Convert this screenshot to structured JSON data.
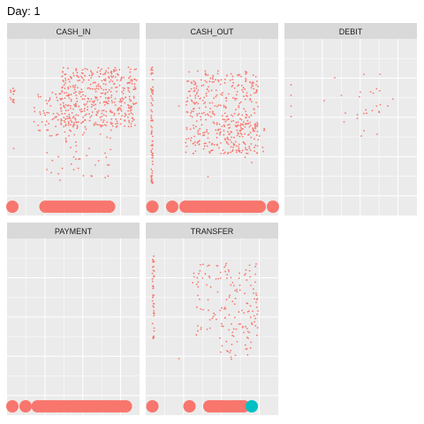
{
  "title": "Day: 1",
  "colors": {
    "panel_bg": "#EBEBEB",
    "strip_bg": "#D9D9D9",
    "grid": "#FFFFFF",
    "not_fraud": "#F8766D",
    "fraud": "#00BFC4"
  },
  "chart_data": {
    "type": "scatter",
    "facet_by": "type",
    "grid": true,
    "legend": "none",
    "panels": [
      {
        "name": "CASH_IN",
        "scatter_bands": [
          {
            "x": [
              0.02,
              0.06
            ],
            "y": [
              0.62,
              0.72
            ],
            "count": 14
          },
          {
            "x": [
              0.2,
              0.6
            ],
            "y": [
              0.45,
              0.7
            ],
            "count": 90
          },
          {
            "x": [
              0.4,
              0.98
            ],
            "y": [
              0.5,
              0.84
            ],
            "count": 420
          },
          {
            "x": [
              0.3,
              0.8
            ],
            "y": [
              0.2,
              0.5
            ],
            "count": 40
          }
        ],
        "scatter_points": [
          [
            0.05,
            0.38
          ],
          [
            0.3,
            0.26
          ],
          [
            0.4,
            0.2
          ],
          [
            0.55,
            0.32
          ],
          [
            0.62,
            0.38
          ]
        ],
        "large_points": [
          [
            0.04,
            0.05
          ]
        ],
        "large_band": {
          "x": [
            0.29,
            0.78
          ],
          "y": 0.05
        }
      },
      {
        "name": "CASH_OUT",
        "scatter_bands": [
          {
            "x": [
              0.04,
              0.055
            ],
            "y": [
              0.18,
              0.86
            ],
            "count": 70
          },
          {
            "x": [
              0.3,
              0.85
            ],
            "y": [
              0.35,
              0.82
            ],
            "count": 380
          },
          {
            "x": [
              0.6,
              0.9
            ],
            "y": [
              0.35,
              0.52
            ],
            "count": 60
          }
        ],
        "scatter_points": [
          [
            0.47,
            0.22
          ],
          [
            0.8,
            0.3
          ],
          [
            0.75,
            0.33
          ],
          [
            0.25,
            0.62
          ]
        ],
        "large_points": [
          [
            0.05,
            0.05
          ],
          [
            0.2,
            0.05
          ],
          [
            0.96,
            0.05
          ]
        ],
        "large_band": {
          "x": [
            0.3,
            0.88
          ],
          "y": 0.05
        }
      },
      {
        "name": "DEBIT",
        "scatter_bands": [
          {
            "x": [
              0.55,
              0.75
            ],
            "y": [
              0.56,
              0.72
            ],
            "count": 14
          }
        ],
        "scatter_points": [
          [
            0.05,
            0.74
          ],
          [
            0.05,
            0.68
          ],
          [
            0.05,
            0.62
          ],
          [
            0.05,
            0.56
          ],
          [
            0.38,
            0.78
          ],
          [
            0.43,
            0.68
          ],
          [
            0.46,
            0.58
          ],
          [
            0.6,
            0.8
          ],
          [
            0.72,
            0.8
          ],
          [
            0.55,
            0.55
          ],
          [
            0.6,
            0.48
          ],
          [
            0.7,
            0.46
          ],
          [
            0.58,
            0.45
          ],
          [
            0.78,
            0.62
          ],
          [
            0.82,
            0.66
          ],
          [
            0.65,
            0.7
          ],
          [
            0.3,
            0.65
          ],
          [
            0.45,
            0.53
          ]
        ],
        "large_points": [],
        "large_band": null
      },
      {
        "name": "PAYMENT",
        "scatter_bands": [],
        "scatter_points": [],
        "large_points": [
          [
            0.04,
            0.05
          ],
          [
            0.14,
            0.05
          ]
        ],
        "large_band": {
          "x": [
            0.23,
            0.92
          ],
          "y": 0.05
        }
      },
      {
        "name": "TRANSFER",
        "scatter_bands": [
          {
            "x": [
              0.05,
              0.065
            ],
            "y": [
              0.42,
              0.9
            ],
            "count": 40
          },
          {
            "x": [
              0.35,
              0.85
            ],
            "y": [
              0.45,
              0.86
            ],
            "count": 140
          },
          {
            "x": [
              0.55,
              0.8
            ],
            "y": [
              0.3,
              0.45
            ],
            "count": 20
          }
        ],
        "scatter_points": [
          [
            0.25,
            0.32
          ],
          [
            0.62,
            0.36
          ],
          [
            0.65,
            0.4
          ]
        ],
        "large_points": [
          [
            0.05,
            0.05
          ],
          [
            0.33,
            0.05
          ],
          [
            0.48,
            0.05
          ]
        ],
        "large_band": {
          "x": [
            0.5,
            0.76
          ],
          "y": 0.05
        },
        "fraud_points": [
          [
            0.8,
            0.05
          ]
        ]
      }
    ]
  }
}
